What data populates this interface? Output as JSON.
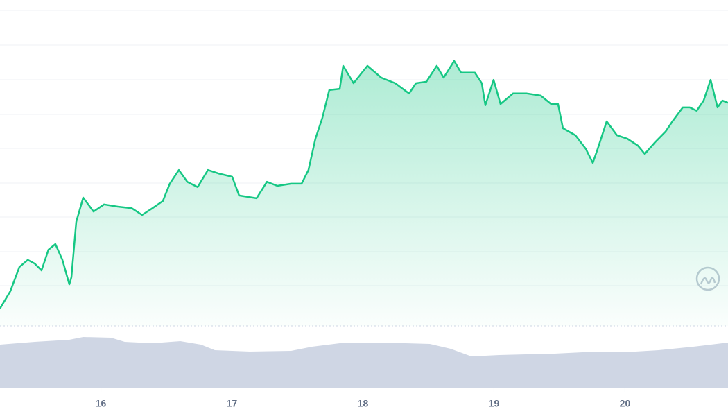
{
  "chart_data": {
    "type": "line",
    "x": [
      15.23,
      15.309,
      15.378,
      15.442,
      15.495,
      15.547,
      15.6,
      15.653,
      15.706,
      15.759,
      15.775,
      15.812,
      15.865,
      15.944,
      16.024,
      16.129,
      16.235,
      16.315,
      16.394,
      16.473,
      16.526,
      16.595,
      16.659,
      16.738,
      16.817,
      16.897,
      17.002,
      17.055,
      17.188,
      17.267,
      17.346,
      17.452,
      17.532,
      17.584,
      17.637,
      17.69,
      17.743,
      17.823,
      17.849,
      17.928,
      18.034,
      18.14,
      18.246,
      18.352,
      18.405,
      18.484,
      18.563,
      18.616,
      18.696,
      18.749,
      18.854,
      18.907,
      18.934,
      18.997,
      19.05,
      19.145,
      19.251,
      19.357,
      19.436,
      19.489,
      19.526,
      19.622,
      19.701,
      19.754,
      19.791,
      19.86,
      19.939,
      20.018,
      20.098,
      20.151,
      20.23,
      20.309,
      20.362,
      20.441,
      20.494,
      20.547,
      20.6,
      20.653,
      20.706,
      20.743,
      20.786
    ],
    "values": [
      3.8,
      9.4,
      17.2,
      19.5,
      18.3,
      16.1,
      22.8,
      24.6,
      19.5,
      11.6,
      13.9,
      31.8,
      39.6,
      35.1,
      37.4,
      36.7,
      36.2,
      34.0,
      36.2,
      38.5,
      44.1,
      48.5,
      44.7,
      43.0,
      48.5,
      47.4,
      46.3,
      40.3,
      39.4,
      44.7,
      43.4,
      44.1,
      44.1,
      48.5,
      58.6,
      65.3,
      74.3,
      74.7,
      82.1,
      76.5,
      82.1,
      78.3,
      76.5,
      73.2,
      76.5,
      77.0,
      82.1,
      78.3,
      83.7,
      79.9,
      79.9,
      76.5,
      69.4,
      77.6,
      69.8,
      73.2,
      73.2,
      72.5,
      69.8,
      69.8,
      62.0,
      59.7,
      55.3,
      50.8,
      55.3,
      64.2,
      59.7,
      58.6,
      56.4,
      53.7,
      57.5,
      60.9,
      64.2,
      68.7,
      68.7,
      67.6,
      70.9,
      77.6,
      68.7,
      70.9,
      70.2
    ],
    "color": "#16c784",
    "xlim": [
      15.23,
      20.786
    ],
    "ylim": [
      0,
      100
    ],
    "xticks": [
      16,
      17,
      18,
      19,
      20
    ],
    "grid": true,
    "volume": {
      "color": "#cfd6e4",
      "ylim": [
        0,
        100
      ],
      "x": [
        15.23,
        15.495,
        15.759,
        15.865,
        16.077,
        16.182,
        16.394,
        16.606,
        16.764,
        16.87,
        17.135,
        17.452,
        17.611,
        17.823,
        18.14,
        18.51,
        18.669,
        18.828,
        19.04,
        19.463,
        19.78,
        19.992,
        20.257,
        20.521,
        20.786
      ],
      "values": [
        70,
        74.4,
        77.8,
        82.2,
        81.1,
        74.4,
        72.2,
        75.6,
        70,
        61.1,
        58.9,
        60,
        66.7,
        72.2,
        73.3,
        71.1,
        63.3,
        51.1,
        53.3,
        55.6,
        58.9,
        57.8,
        61.1,
        66.7,
        73.3
      ]
    }
  }
}
